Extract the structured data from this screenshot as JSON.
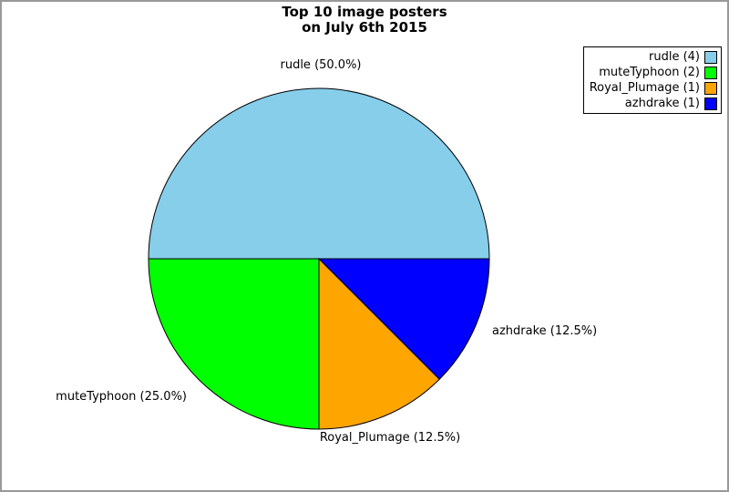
{
  "frame": {
    "background_color": "#ffffff",
    "border_color": "#999999"
  },
  "title": {
    "line1": "Top 10 image posters",
    "line2": "on July 6th 2015"
  },
  "chart_data": {
    "type": "pie",
    "title": "Top 10 image posters on July 6th 2015",
    "start_angle_deg": 0,
    "direction": "counterclockwise",
    "outline_color": "#000000",
    "legend_position": "top-right",
    "slices": [
      {
        "name": "rudle",
        "count": 4,
        "percent": 50.0,
        "color": "#87CEEB",
        "label": "rudle (50.0%)",
        "legend_label": "rudle (4)"
      },
      {
        "name": "muteTyphoon",
        "count": 2,
        "percent": 25.0,
        "color": "#00FF00",
        "label": "muteTyphoon (25.0%)",
        "legend_label": "muteTyphoon (2)"
      },
      {
        "name": "Royal_Plumage",
        "count": 1,
        "percent": 12.5,
        "color": "#FFA500",
        "label": "Royal_Plumage (12.5%)",
        "legend_label": "Royal_Plumage (1)"
      },
      {
        "name": "azhdrake",
        "count": 1,
        "percent": 12.5,
        "color": "#0000FF",
        "label": "azhdrake (12.5%)",
        "legend_label": "azhdrake (1)"
      }
    ]
  }
}
